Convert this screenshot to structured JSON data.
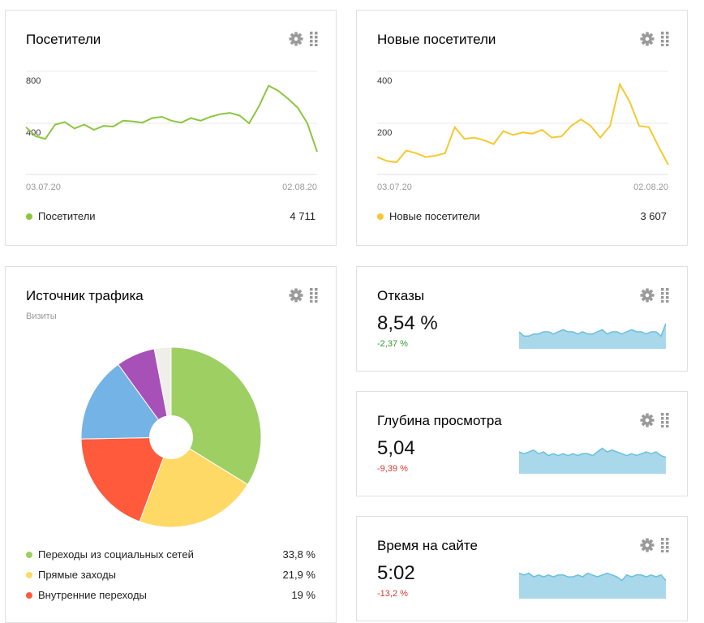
{
  "visitors": {
    "title": "Посетители",
    "y_ticks": [
      "800",
      "400"
    ],
    "date_start": "03.07.20",
    "date_end": "02.08.20",
    "legend_label": "Посетители",
    "total": "4 711",
    "color": "#8cc63f",
    "chart_data": {
      "type": "line",
      "x_start": "03.07.20",
      "x_end": "02.08.20",
      "ylim": [
        0,
        1000
      ],
      "series": [
        {
          "name": "Посетители",
          "values": [
            370,
            300,
            280,
            390,
            410,
            360,
            390,
            350,
            380,
            375,
            420,
            415,
            405,
            440,
            450,
            420,
            405,
            440,
            420,
            450,
            470,
            480,
            460,
            400,
            530,
            690,
            650,
            590,
            520,
            400,
            180
          ]
        }
      ]
    }
  },
  "new_visitors": {
    "title": "Новые посетители",
    "y_ticks": [
      "400",
      "200"
    ],
    "date_start": "03.07.20",
    "date_end": "02.08.20",
    "legend_label": "Новые посетители",
    "total": "3 607",
    "color": "#f5c92f",
    "chart_data": {
      "type": "line",
      "x_start": "03.07.20",
      "x_end": "02.08.20",
      "ylim": [
        0,
        500
      ],
      "series": [
        {
          "name": "Новые посетители",
          "values": [
            70,
            55,
            50,
            95,
            85,
            70,
            75,
            85,
            185,
            140,
            145,
            135,
            120,
            170,
            155,
            165,
            160,
            175,
            145,
            150,
            190,
            215,
            190,
            145,
            190,
            350,
            285,
            190,
            185,
            110,
            40
          ]
        }
      ]
    }
  },
  "traffic": {
    "title": "Источник трафика",
    "subtitle": "Визиты",
    "chart_data": {
      "type": "pie",
      "slices": [
        {
          "label": "Переходы из социальных сетей",
          "value": 33.8,
          "display": "33,8 %",
          "color": "#9dcf62"
        },
        {
          "label": "Прямые заходы",
          "value": 21.9,
          "display": "21,9 %",
          "color": "#ffd966"
        },
        {
          "label": "Внутренние переходы",
          "value": 19,
          "display": "19 %",
          "color": "#ff5a3c"
        },
        {
          "label": "",
          "value": 15.3,
          "display": "",
          "color": "#74b3e6"
        },
        {
          "label": "",
          "value": 7,
          "display": "",
          "color": "#a650b8"
        },
        {
          "label": "",
          "value": 3,
          "display": "",
          "color": "#efeeea"
        }
      ]
    }
  },
  "bounce": {
    "title": "Отказы",
    "value": "8,54 %",
    "delta": "-2,37 %",
    "spark_color": "#a8d8ea",
    "spark_line": "#6bbfdf",
    "chart_data": {
      "type": "area",
      "values": [
        8,
        6,
        6,
        7,
        7,
        8,
        8,
        7,
        8,
        9,
        8,
        8,
        7,
        8,
        7,
        7,
        8,
        9,
        7,
        8,
        8,
        7,
        8,
        9,
        8,
        8,
        7,
        8,
        8,
        6,
        12
      ]
    }
  },
  "depth": {
    "title": "Глубина просмотра",
    "value": "5,04",
    "delta": "-9,39 %",
    "spark_color": "#a8d8ea",
    "spark_line": "#6bbfdf",
    "chart_data": {
      "type": "area",
      "values": [
        12,
        11,
        12,
        13,
        11,
        12,
        10,
        11,
        10,
        11,
        10,
        11,
        10,
        11,
        11,
        10,
        12,
        14,
        12,
        13,
        12,
        11,
        10,
        11,
        10,
        11,
        12,
        11,
        12,
        10,
        9
      ]
    }
  },
  "time": {
    "title": "Время на сайте",
    "value": "5:02",
    "delta": "-13,2 %",
    "spark_color": "#a8d8ea",
    "spark_line": "#6bbfdf",
    "chart_data": {
      "type": "area",
      "values": [
        14,
        13,
        14,
        12,
        13,
        12,
        13,
        12,
        13,
        13,
        12,
        12,
        13,
        12,
        14,
        13,
        12,
        13,
        14,
        13,
        12,
        10,
        13,
        12,
        13,
        13,
        12,
        13,
        12,
        13,
        10
      ]
    }
  }
}
